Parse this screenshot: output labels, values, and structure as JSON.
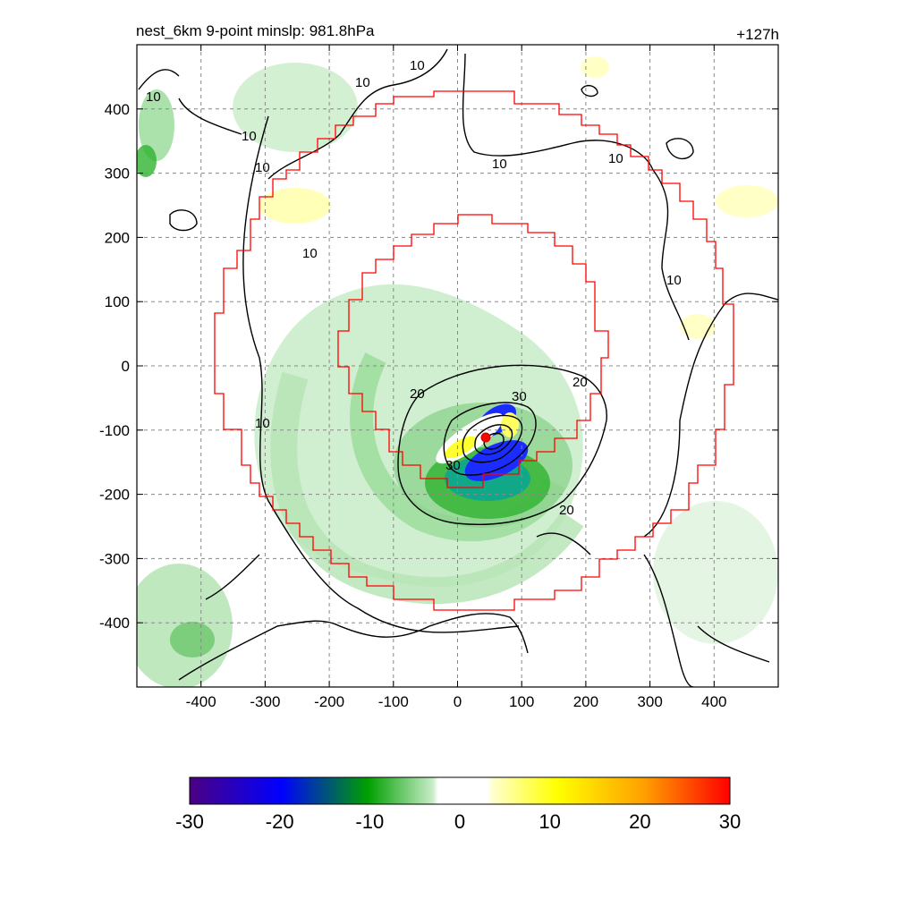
{
  "figure": {
    "title_left": "nest_6km  9-point minslp: 981.8hPa",
    "title_right": "+127h"
  },
  "chart_data": {
    "type": "heatmap",
    "x_ticks": [
      "-400",
      "-300",
      "-200",
      "-100",
      "0",
      "100",
      "200",
      "300",
      "400"
    ],
    "y_ticks": [
      "400",
      "300",
      "200",
      "100",
      "0",
      "-100",
      "-200",
      "-300",
      "-400"
    ],
    "xlim": [
      -500,
      500
    ],
    "ylim": [
      -500,
      500
    ],
    "grid": true,
    "colorbar": {
      "ticks": [
        "-30",
        "-20",
        "-10",
        "0",
        "10",
        "20",
        "30"
      ],
      "range": [
        -30,
        30
      ],
      "colors": [
        "#4b0082",
        "#0000ff",
        "#00a000",
        "#ffffff",
        "#ffff00",
        "#ff0000"
      ]
    },
    "contour_labels": [
      "10",
      "10",
      "10",
      "10",
      "10",
      "10",
      "10",
      "10",
      "10",
      "10",
      "20",
      "20",
      "20",
      "30",
      "30"
    ],
    "center_marker": {
      "x": 40,
      "y": -113,
      "color": "#ff0000"
    }
  }
}
